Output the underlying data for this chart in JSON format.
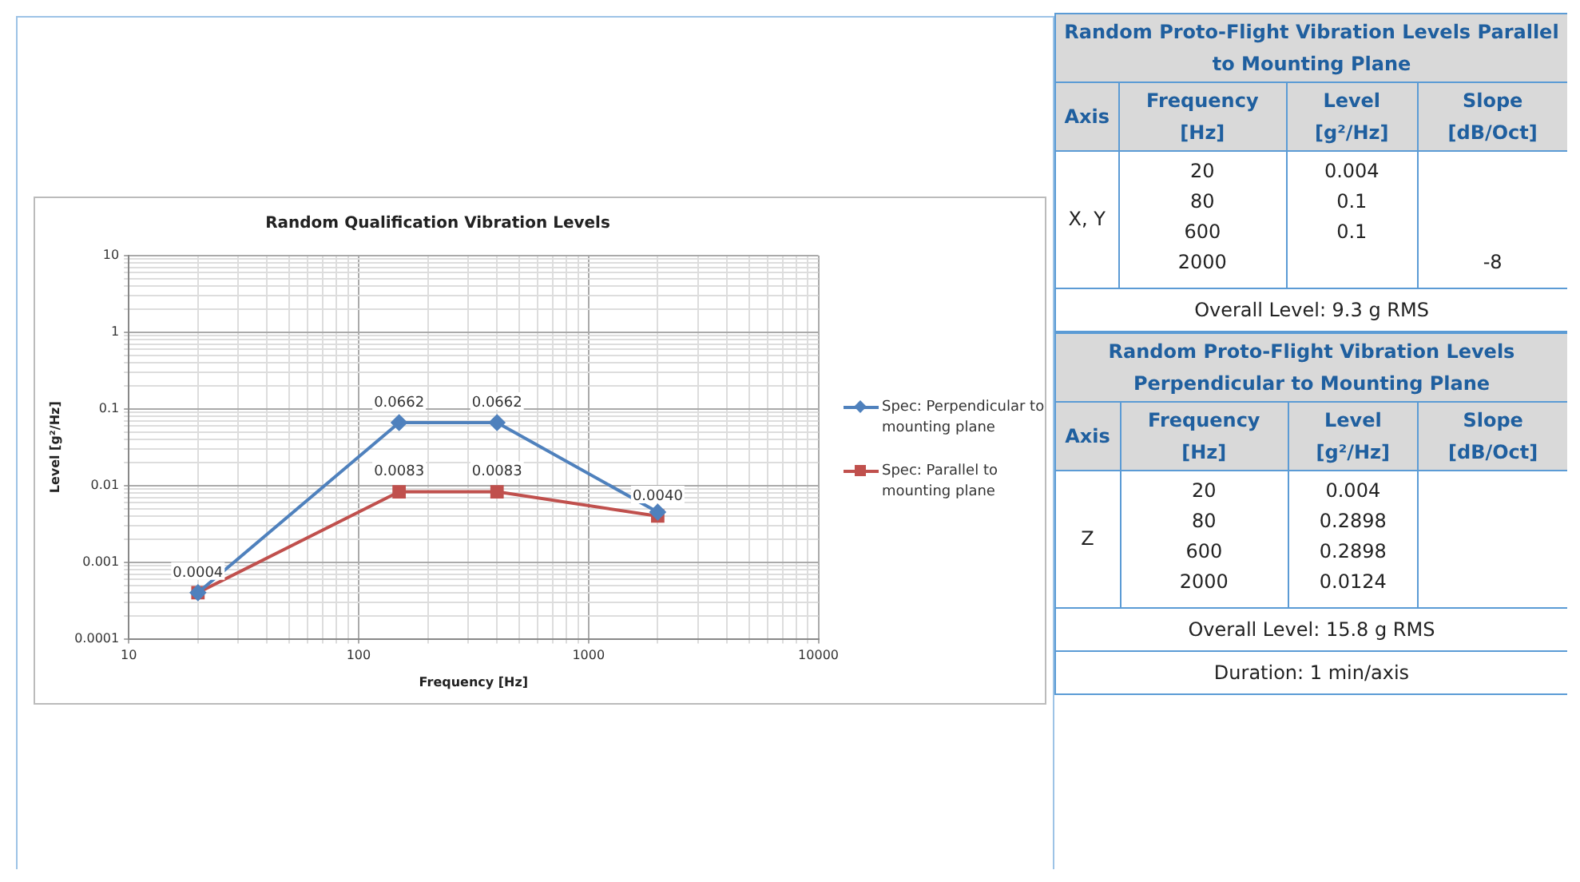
{
  "chart_data": [
    {
      "type": "line",
      "title": "Random Qualification Vibration Levels",
      "xlabel": "Frequency [Hz]",
      "ylabel": "Level [g²/Hz]",
      "log": "xy",
      "grid": true,
      "legend": "right",
      "xlim": [
        10,
        10000
      ],
      "ylim": [
        0.0001,
        10
      ],
      "xticks": [
        10,
        {
          "value": 20,
          "label": null
        },
        {
          "value": 30,
          "label": null
        },
        {
          "value": 40,
          "label": null
        },
        {
          "value": 50,
          "label": null
        },
        {
          "value": 60,
          "label": null
        },
        {
          "value": 70,
          "label": null
        },
        {
          "value": 80,
          "label": null
        },
        {
          "value": 90,
          "label": null
        },
        100,
        {
          "value": 200,
          "label": null
        },
        {
          "value": 300,
          "label": null
        },
        {
          "value": 400,
          "label": null
        },
        {
          "value": 500,
          "label": null
        },
        {
          "value": 600,
          "label": null
        },
        {
          "value": 700,
          "label": null
        },
        {
          "value": 800,
          "label": null
        },
        {
          "value": 900,
          "label": null
        },
        1000,
        {
          "value": 2000,
          "label": null
        },
        {
          "value": 3000,
          "label": null
        },
        {
          "value": 4000,
          "label": null
        },
        {
          "value": 5000,
          "label": null
        },
        {
          "value": 6000,
          "label": null
        },
        {
          "value": 7000,
          "label": null
        },
        {
          "value": 8000,
          "label": null
        },
        {
          "value": 9000,
          "label": null
        },
        10000
      ],
      "yticks": [
        {
          "value": 0.0001,
          "label": "0.0001"
        },
        {
          "value": 0.0002,
          "label": null
        },
        {
          "value": 0.0003,
          "label": null
        },
        {
          "value": 0.0004,
          "label": null
        },
        {
          "value": 0.0005,
          "label": null
        },
        {
          "value": 0.0006,
          "label": null
        },
        {
          "value": 0.0007,
          "label": null
        },
        {
          "value": 0.0008,
          "label": null
        },
        {
          "value": 0.0009,
          "label": null
        },
        {
          "value": 0.001,
          "label": "0.001"
        },
        {
          "value": 0.002,
          "label": null
        },
        {
          "value": 0.003,
          "label": null
        },
        {
          "value": 0.004,
          "label": null
        },
        {
          "value": 0.005,
          "label": null
        },
        {
          "value": 0.006,
          "label": null
        },
        {
          "value": 0.007,
          "label": null
        },
        {
          "value": 0.008,
          "label": null
        },
        {
          "value": 0.009,
          "label": null
        },
        {
          "value": 0.01,
          "label": "0.01"
        },
        {
          "value": 0.02,
          "label": null
        },
        {
          "value": 0.03,
          "label": null
        },
        {
          "value": 0.04,
          "label": null
        },
        {
          "value": 0.05,
          "label": null
        },
        {
          "value": 0.06,
          "label": null
        },
        {
          "value": 0.07,
          "label": null
        },
        {
          "value": 0.08,
          "label": null
        },
        {
          "value": 0.09,
          "label": null
        },
        {
          "value": 0.1,
          "label": "0.1"
        },
        {
          "value": 0.2,
          "label": null
        },
        {
          "value": 0.3,
          "label": null
        },
        {
          "value": 0.4,
          "label": null
        },
        {
          "value": 0.5,
          "label": null
        },
        {
          "value": 0.6,
          "label": null
        },
        {
          "value": 0.7,
          "label": null
        },
        {
          "value": 0.8,
          "label": null
        },
        {
          "value": 0.9,
          "label": null
        },
        1,
        {
          "value": 2,
          "label": null
        },
        {
          "value": 3,
          "label": null
        },
        {
          "value": 4,
          "label": null
        },
        {
          "value": 5,
          "label": null
        },
        {
          "value": 6,
          "label": null
        },
        {
          "value": 7,
          "label": null
        },
        {
          "value": 8,
          "label": null
        },
        {
          "value": 9,
          "label": null
        },
        10
      ],
      "series": [
        {
          "name": "Spec: Perpendicular to mounting plane",
          "color": "#4f81bd",
          "marker": "diamond",
          "x": [
            20,
            150,
            400,
            2000
          ],
          "values": [
            0.0004,
            0.0662,
            0.0662,
            0.0045
          ],
          "value_labels": [
            null,
            "0.0662",
            "0.0662",
            null
          ]
        },
        {
          "name": "Spec: Parallel to mounting plane",
          "color": "#c0504d",
          "marker": "square",
          "x": [
            20,
            150,
            400,
            2000
          ],
          "values": [
            0.0004,
            0.0083,
            0.0083,
            0.004
          ],
          "value_labels": [
            "0.0004",
            "0.0083",
            "0.0083",
            "0.0040"
          ]
        }
      ]
    },
    {
      "type": "other",
      "title": "Random Proto-Flight Vibration Levels Parallel to Mounting Plane",
      "categories": [
        "Axis",
        "Frequency [Hz]",
        "Level [g²/Hz]",
        "Slope [dB/Oct]"
      ],
      "annotations": [
        "X, Y",
        "20\n80\n600\n2000",
        "0.004\n0.1\n0.1",
        "\n\n\n-8",
        "Overall Level: 9.3 g RMS"
      ]
    },
    {
      "type": "other",
      "title": "Random Proto-Flight Vibration Levels Perpendicular to Mounting Plane",
      "categories": [
        "Axis",
        "Frequency [Hz]",
        "Level [g²/Hz]",
        "Slope [dB/Oct]"
      ],
      "annotations": [
        "Z",
        "20\n80\n600\n2000",
        "0.004\n0.2898\n0.2898\n0.0124",
        null,
        "Overall Level: 15.8 g RMS",
        "Duration: 1 min/axis"
      ]
    }
  ]
}
